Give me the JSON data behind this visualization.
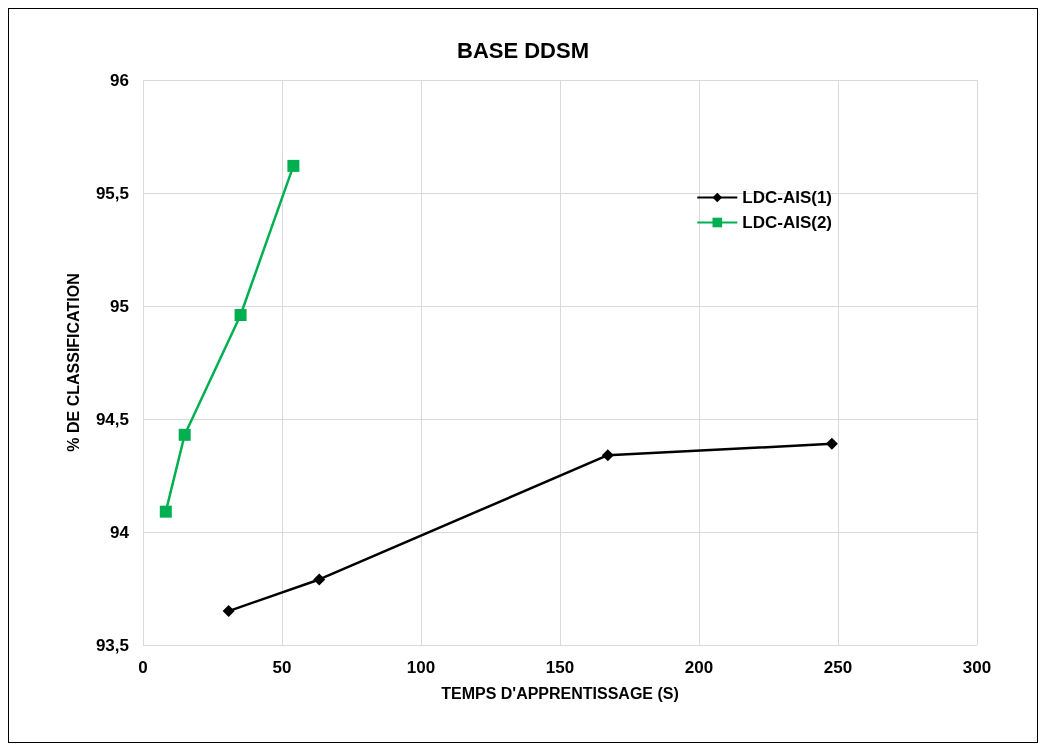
{
  "chart_data": {
    "type": "line",
    "title": "BASE DDSM",
    "xlabel": "TEMPS D'APPRENTISSAGE (S)",
    "ylabel": "% DE CLASSIFICATION",
    "xlim": [
      0,
      300
    ],
    "xticks": [
      0,
      50,
      100,
      150,
      200,
      250,
      300
    ],
    "ylim": [
      93.5,
      96
    ],
    "yticks": [
      {
        "value": 93.5,
        "label": "93,5"
      },
      94,
      {
        "value": 94.5,
        "label": "94,5"
      },
      95,
      {
        "value": 95.5,
        "label": "95,5"
      },
      96
    ],
    "grid": true,
    "legend": "top right",
    "series": [
      {
        "name": "LDC-AIS(1)",
        "color": "#000000",
        "marker": "diamond",
        "x": [
          30.8,
          63.4,
          167.2,
          247.8
        ],
        "values": [
          93.65,
          93.79,
          94.34,
          94.39
        ]
      },
      {
        "name": "LDC-AIS(2)",
        "color": "#00b050",
        "marker": "square",
        "x": [
          8.2,
          15,
          35.1,
          54.1
        ],
        "values": [
          94.09,
          94.43,
          94.96,
          95.62
        ]
      }
    ]
  }
}
